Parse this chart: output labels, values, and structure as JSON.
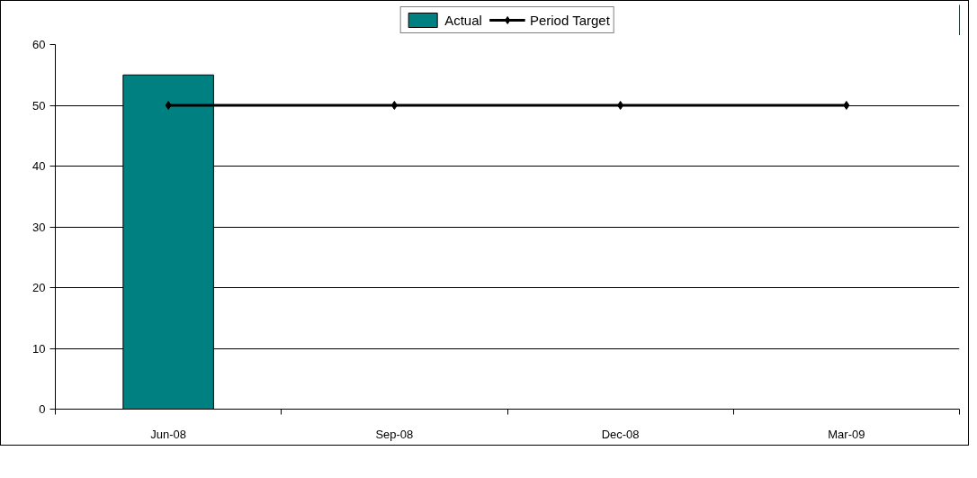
{
  "chart_data": {
    "type": "bar",
    "categories": [
      "Jun-08",
      "Sep-08",
      "Dec-08",
      "Mar-09"
    ],
    "series": [
      {
        "name": "Actual",
        "color": "#008080",
        "values": [
          55,
          null,
          null,
          null
        ]
      },
      {
        "name": "Period Target",
        "type": "line",
        "color": "#000000",
        "values": [
          50,
          50,
          50,
          50
        ]
      }
    ],
    "ylim": [
      0,
      60
    ],
    "yticks": [
      0,
      10,
      20,
      30,
      40,
      50,
      60
    ],
    "grid": "y",
    "legend": "top",
    "marker": "diamond",
    "line_style": "solid"
  }
}
